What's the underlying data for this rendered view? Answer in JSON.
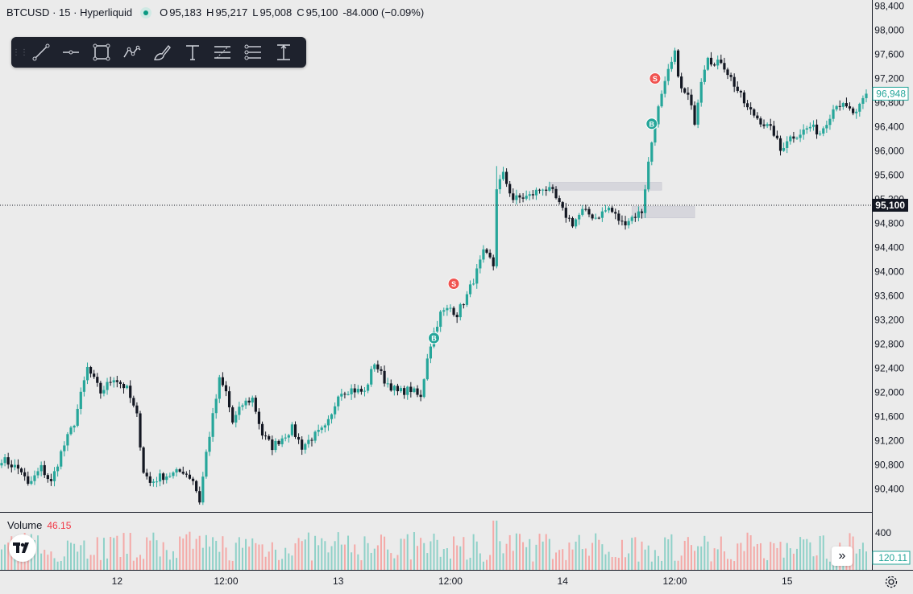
{
  "header": {
    "symbol": "BTCUSD",
    "sep1": "·",
    "interval": "15",
    "sep2": "·",
    "exchange": "Hyperliquid",
    "open_label": "O",
    "open": "95,183",
    "high_label": "H",
    "high": "95,217",
    "low_label": "L",
    "low": "95,008",
    "close_label": "C",
    "close": "95,100",
    "change": "-84.000 (−0.09%)"
  },
  "toolbar": {
    "tools": [
      "trend-line",
      "horizontal-line",
      "rectangle",
      "path",
      "brush",
      "text",
      "fib-retracement",
      "long-short-position",
      "price-range"
    ]
  },
  "volume": {
    "label": "Volume",
    "value": "46.15",
    "scale_label": "400",
    "current_tag": "120.11"
  },
  "colors": {
    "up": "#26a69a",
    "down": "#131722",
    "background": "#ebebeb",
    "buy_marker": "#26a69a",
    "sell_marker": "#f05350",
    "zone": "#d6d6dc",
    "vol_up": "#8fd1c8",
    "vol_down": "#f4a9a7"
  },
  "chart_data": {
    "type": "candlestick",
    "ylim": [
      90100,
      98500
    ],
    "y_ticks": [
      "98,400",
      "98,000",
      "97,600",
      "97,200",
      "96,800",
      "96,400",
      "96,000",
      "95,600",
      "95,200",
      "94,800",
      "94,400",
      "94,000",
      "93,600",
      "93,200",
      "92,800",
      "92,400",
      "92,000",
      "91,600",
      "91,200",
      "90,800",
      "90,400"
    ],
    "x_ticks": [
      {
        "label": "12",
        "bar": 35
      },
      {
        "label": "12:00",
        "bar": 68
      },
      {
        "label": "13",
        "bar": 102
      },
      {
        "label": "12:00",
        "bar": 136
      },
      {
        "label": "14",
        "bar": 170
      },
      {
        "label": "12:00",
        "bar": 204
      },
      {
        "label": "15",
        "bar": 238
      }
    ],
    "bar_count": 263,
    "price_path": [
      [
        0,
        90900
      ],
      [
        6,
        90700
      ],
      [
        8,
        90450
      ],
      [
        12,
        90750
      ],
      [
        15,
        90500
      ],
      [
        18,
        91000
      ],
      [
        22,
        91500
      ],
      [
        26,
        92400
      ],
      [
        28,
        92200
      ],
      [
        30,
        92000
      ],
      [
        34,
        92250
      ],
      [
        38,
        92050
      ],
      [
        41,
        91600
      ],
      [
        43,
        90700
      ],
      [
        45,
        90500
      ],
      [
        48,
        90600
      ],
      [
        52,
        90650
      ],
      [
        55,
        90700
      ],
      [
        58,
        90550
      ],
      [
        60,
        90200
      ],
      [
        62,
        91000
      ],
      [
        64,
        91600
      ],
      [
        66,
        92200
      ],
      [
        68,
        92000
      ],
      [
        70,
        91500
      ],
      [
        73,
        91800
      ],
      [
        76,
        91900
      ],
      [
        79,
        91300
      ],
      [
        82,
        91100
      ],
      [
        85,
        91250
      ],
      [
        88,
        91400
      ],
      [
        91,
        91100
      ],
      [
        94,
        91250
      ],
      [
        98,
        91400
      ],
      [
        100,
        91600
      ],
      [
        102,
        92000
      ],
      [
        106,
        92050
      ],
      [
        110,
        92000
      ],
      [
        113,
        92500
      ],
      [
        116,
        92200
      ],
      [
        120,
        92000
      ],
      [
        124,
        92050
      ],
      [
        127,
        91900
      ],
      [
        129,
        92600
      ],
      [
        131,
        93000
      ],
      [
        133,
        93300
      ],
      [
        136,
        93400
      ],
      [
        138,
        93300
      ],
      [
        141,
        93600
      ],
      [
        144,
        94000
      ],
      [
        146,
        94300
      ],
      [
        148,
        94200
      ],
      [
        149,
        94100
      ],
      [
        150,
        95400
      ],
      [
        152,
        95600
      ],
      [
        155,
        95200
      ],
      [
        160,
        95250
      ],
      [
        164,
        95400
      ],
      [
        167,
        95300
      ],
      [
        170,
        95000
      ],
      [
        173,
        94800
      ],
      [
        176,
        95000
      ],
      [
        180,
        94900
      ],
      [
        184,
        95050
      ],
      [
        188,
        94800
      ],
      [
        191,
        94900
      ],
      [
        194,
        95000
      ],
      [
        196,
        95800
      ],
      [
        198,
        96500
      ],
      [
        200,
        96900
      ],
      [
        202,
        97300
      ],
      [
        204,
        97600
      ],
      [
        206,
        97000
      ],
      [
        208,
        96900
      ],
      [
        210,
        96500
      ],
      [
        212,
        97200
      ],
      [
        214,
        97600
      ],
      [
        216,
        97400
      ],
      [
        218,
        97500
      ],
      [
        220,
        97300
      ],
      [
        223,
        97000
      ],
      [
        226,
        96700
      ],
      [
        230,
        96500
      ],
      [
        234,
        96300
      ],
      [
        236,
        96000
      ],
      [
        238,
        96200
      ],
      [
        242,
        96300
      ],
      [
        245,
        96400
      ],
      [
        248,
        96300
      ],
      [
        251,
        96600
      ],
      [
        253,
        96800
      ],
      [
        256,
        96700
      ],
      [
        259,
        96600
      ],
      [
        262,
        96948
      ]
    ],
    "last_price": 95100,
    "last_price_label": "95,100",
    "current_price": 96948,
    "current_price_label": "96,948",
    "markers": [
      {
        "type": "buy",
        "text": "B",
        "bar": 131,
        "price": 92900
      },
      {
        "type": "sell",
        "text": "S",
        "bar": 137,
        "price": 93800
      },
      {
        "type": "buy",
        "text": "B",
        "bar": 197,
        "price": 96450
      },
      {
        "type": "sell",
        "text": "S",
        "bar": 198,
        "price": 97200
      }
    ],
    "zones": [
      {
        "bar_from": 166,
        "bar_to": 200,
        "price_from": 95350,
        "price_to": 95480
      },
      {
        "bar_from": 191,
        "bar_to": 210,
        "price_from": 94890,
        "price_to": 95080
      }
    ]
  }
}
